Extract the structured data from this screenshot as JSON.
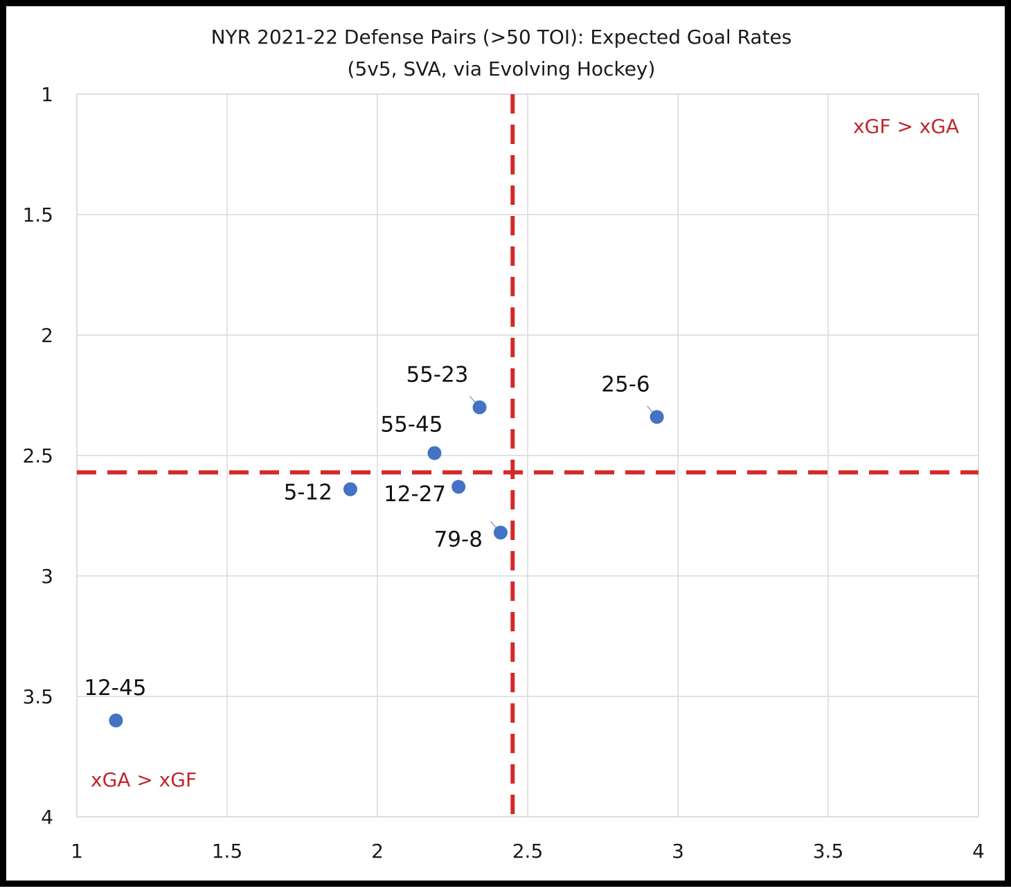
{
  "chart_data": {
    "type": "scatter",
    "title": "NYR 2021-22 Defense Pairs (>50 TOI): Expected Goal Rates",
    "subtitle": "(5v5, SVA, via Evolving Hockey)",
    "xlabel": "",
    "ylabel": "",
    "xlim": [
      1,
      4
    ],
    "ylim": [
      1,
      4
    ],
    "y_inverted": true,
    "grid": true,
    "x_ticks": [
      "1",
      "1.5",
      "2",
      "2.5",
      "3",
      "3.5",
      "4"
    ],
    "y_ticks": [
      "1",
      "1.5",
      "2",
      "2.5",
      "3",
      "3.5",
      "4"
    ],
    "x_tick_values": [
      1,
      1.5,
      2,
      2.5,
      3,
      3.5,
      4
    ],
    "y_tick_values": [
      1,
      1.5,
      2,
      2.5,
      3,
      3.5,
      4
    ],
    "reference_lines": {
      "x": 2.45,
      "y": 2.57,
      "color": "#d42a2a",
      "style": "dashed"
    },
    "points": [
      {
        "label": "55-23",
        "x": 2.34,
        "y": 2.3
      },
      {
        "label": "25-6",
        "x": 2.93,
        "y": 2.34
      },
      {
        "label": "55-45",
        "x": 2.19,
        "y": 2.49
      },
      {
        "label": "5-12",
        "x": 1.91,
        "y": 2.64
      },
      {
        "label": "12-27",
        "x": 2.27,
        "y": 2.63
      },
      {
        "label": "79-8",
        "x": 2.41,
        "y": 2.82
      },
      {
        "label": "12-45",
        "x": 1.13,
        "y": 3.6
      }
    ],
    "annotations": [
      {
        "text": "xGF > xGA",
        "position": "top-right"
      },
      {
        "text": "xGA > xGF",
        "position": "bottom-left"
      }
    ],
    "colors": {
      "point": "#4472c4",
      "reference": "#d42a2a",
      "grid": "#d9d9d9",
      "annotation": "#c0262c"
    }
  }
}
